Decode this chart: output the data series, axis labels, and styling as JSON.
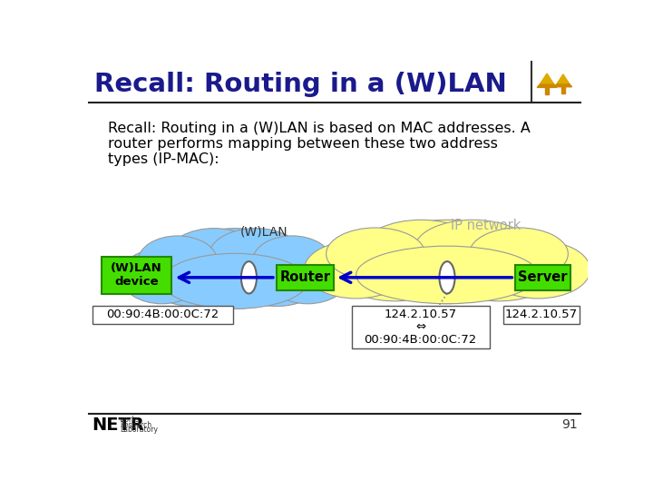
{
  "title": "Recall: Routing in a (W)LAN",
  "title_color": "#1a1a8c",
  "body_text_lines": [
    "Recall: Routing in a (W)LAN is based on MAC addresses. A",
    "router performs mapping between these two address",
    "types (IP-MAC):"
  ],
  "slide_bg": "#ffffff",
  "header_line_color": "#222222",
  "footer_line_color": "#222222",
  "page_number": "91",
  "wlan_cloud_color": "#88ccff",
  "ip_cloud_color": "#ffff88",
  "wlan_label": "(W)LAN",
  "ip_label": "IP network",
  "device_box_color": "#44dd00",
  "device_text": "(W)LAN\ndevice",
  "router_text": "Router",
  "server_text": "Server",
  "mac_text": "00:90:4B:00:0C:72",
  "router_info_line1": "124.2.10.57",
  "router_info_line2": "⇔",
  "router_info_line3": "00:90:4B:00:0C:72",
  "server_ip_text": "124.2.10.57",
  "arrow_color": "#0000cc",
  "tree_color": "#cc8800",
  "tree_color2": "#ddaa00"
}
